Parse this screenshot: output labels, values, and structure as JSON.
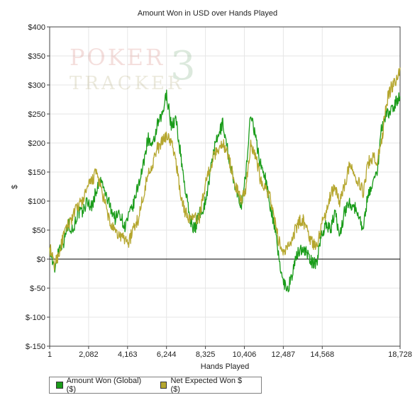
{
  "chart_data": {
    "type": "line",
    "title": "Amount Won in USD over Hands Played",
    "xlabel": "Hands Played",
    "ylabel": "$",
    "xlim": [
      1,
      18728
    ],
    "ylim": [
      -150,
      400
    ],
    "x_ticks": [
      {
        "value": 1,
        "label": "1"
      },
      {
        "value": 2082,
        "label": "2,082"
      },
      {
        "value": 4163,
        "label": "4,163"
      },
      {
        "value": 6244,
        "label": "6,244"
      },
      {
        "value": 8325,
        "label": "8,325"
      },
      {
        "value": 10406,
        "label": "10,406"
      },
      {
        "value": 12487,
        "label": "12,487"
      },
      {
        "value": 14568,
        "label": "14,568"
      },
      {
        "value": 18728,
        "label": "18,728"
      }
    ],
    "y_ticks": [
      {
        "value": 400,
        "label": "$400"
      },
      {
        "value": 350,
        "label": "$350"
      },
      {
        "value": 300,
        "label": "$300"
      },
      {
        "value": 250,
        "label": "$250"
      },
      {
        "value": 200,
        "label": "$200"
      },
      {
        "value": 150,
        "label": "$150"
      },
      {
        "value": 100,
        "label": "$100"
      },
      {
        "value": 50,
        "label": "$50"
      },
      {
        "value": 0,
        "label": "$0"
      },
      {
        "value": -50,
        "label": "$-50"
      },
      {
        "value": -100,
        "label": "$-100"
      },
      {
        "value": -150,
        "label": "$-150"
      }
    ],
    "grid": true,
    "legend_position": "bottom-left",
    "series": [
      {
        "name": "Amount Won (Global) ($)",
        "color": "#1a9c1a",
        "x": [
          1,
          250,
          500,
          750,
          1000,
          1250,
          1500,
          1750,
          2000,
          2250,
          2500,
          2750,
          3000,
          3250,
          3500,
          3750,
          4000,
          4250,
          4500,
          4750,
          5000,
          5250,
          5500,
          5750,
          6000,
          6250,
          6500,
          6750,
          7000,
          7250,
          7500,
          7750,
          8000,
          8250,
          8500,
          8750,
          9000,
          9250,
          9500,
          9750,
          10000,
          10250,
          10500,
          10750,
          11000,
          11250,
          11500,
          11750,
          12000,
          12250,
          12500,
          12750,
          13000,
          13250,
          13500,
          13750,
          14000,
          14250,
          14500,
          14750,
          15000,
          15250,
          15500,
          15750,
          16000,
          16250,
          16500,
          16750,
          17000,
          17250,
          17500,
          17750,
          18000,
          18250,
          18500,
          18728
        ],
        "y": [
          20,
          -20,
          20,
          30,
          60,
          50,
          80,
          80,
          100,
          90,
          120,
          135,
          110,
          90,
          70,
          80,
          55,
          75,
          95,
          130,
          160,
          210,
          190,
          230,
          245,
          285,
          230,
          240,
          180,
          120,
          70,
          50,
          80,
          90,
          130,
          185,
          210,
          235,
          190,
          145,
          110,
          95,
          150,
          255,
          210,
          165,
          145,
          100,
          60,
          0,
          -40,
          -50,
          -20,
          10,
          20,
          10,
          -5,
          -10,
          40,
          60,
          50,
          80,
          40,
          80,
          100,
          90,
          80,
          50,
          110,
          130,
          150,
          230,
          250,
          255,
          270,
          280
        ]
      },
      {
        "name": "Net Expected Won $ ($)",
        "color": "#b5a62e",
        "x": [
          1,
          250,
          500,
          750,
          1000,
          1250,
          1500,
          1750,
          2000,
          2250,
          2500,
          2750,
          3000,
          3250,
          3500,
          3750,
          4000,
          4250,
          4500,
          4750,
          5000,
          5250,
          5500,
          5750,
          6000,
          6250,
          6500,
          6750,
          7000,
          7250,
          7500,
          7750,
          8000,
          8250,
          8500,
          8750,
          9000,
          9250,
          9500,
          9750,
          10000,
          10250,
          10500,
          10750,
          11000,
          11250,
          11500,
          11750,
          12000,
          12250,
          12500,
          12750,
          13000,
          13250,
          13500,
          13750,
          14000,
          14250,
          14500,
          14750,
          15000,
          15250,
          15500,
          15750,
          16000,
          16250,
          16500,
          16750,
          17000,
          17250,
          17500,
          17750,
          18000,
          18250,
          18500,
          18728
        ],
        "y": [
          20,
          -10,
          10,
          40,
          60,
          75,
          90,
          100,
          120,
          135,
          150,
          120,
          90,
          60,
          45,
          40,
          35,
          30,
          55,
          70,
          110,
          145,
          165,
          190,
          200,
          215,
          200,
          170,
          110,
          80,
          70,
          70,
          70,
          120,
          150,
          175,
          190,
          200,
          185,
          150,
          120,
          100,
          125,
          200,
          180,
          140,
          125,
          110,
          70,
          30,
          10,
          20,
          40,
          60,
          70,
          50,
          30,
          20,
          55,
          80,
          110,
          125,
          100,
          125,
          160,
          150,
          135,
          115,
          165,
          175,
          170,
          205,
          270,
          295,
          305,
          330
        ]
      }
    ]
  },
  "legend": {
    "items": [
      {
        "label": "Amount Won (Global) ($)",
        "color": "#1a9c1a"
      },
      {
        "label": "Net Expected Won $ ($)",
        "color": "#b5a62e"
      }
    ]
  },
  "watermark": {
    "line1": "POKER",
    "line2": "TRACKER",
    "badge": "3"
  }
}
